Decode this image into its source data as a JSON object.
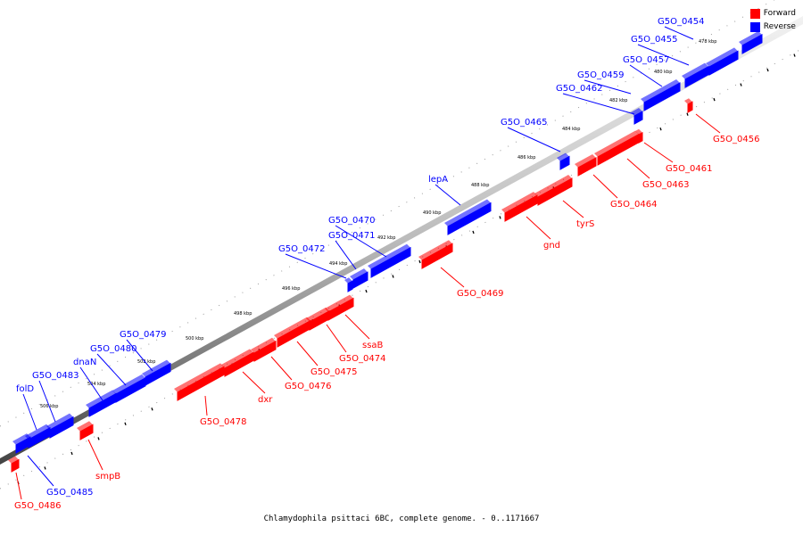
{
  "caption": "Chlamydophila psittaci 6BC, complete genome. - 0..1171667",
  "legend": {
    "forward_label": "Forward",
    "reverse_label": "Reverse",
    "forward_color": "#ff0000",
    "reverse_color": "#0000ff"
  },
  "tick_labels": [
    "478 kbp",
    "480 kbp",
    "482 kbp",
    "484 kbp",
    "486 kbp",
    "488 kbp",
    "490 kbp",
    "492 kbp",
    "494 kbp",
    "496 kbp",
    "498 kbp",
    "500 kbp",
    "502 kbp",
    "504 kbp",
    "506 kbp"
  ],
  "genes": [
    {
      "name": "G5O_0454",
      "strand": "reverse"
    },
    {
      "name": "G5O_0455",
      "strand": "reverse"
    },
    {
      "name": "G5O_0456",
      "strand": "forward"
    },
    {
      "name": "G5O_0457",
      "strand": "reverse"
    },
    {
      "name": "G5O_0459",
      "strand": "reverse"
    },
    {
      "name": "G5O_0462",
      "strand": "reverse"
    },
    {
      "name": "G5O_0461",
      "strand": "forward"
    },
    {
      "name": "G5O_0463",
      "strand": "forward"
    },
    {
      "name": "G5O_0465",
      "strand": "reverse"
    },
    {
      "name": "G5O_0464",
      "strand": "forward"
    },
    {
      "name": "lepA",
      "strand": "reverse"
    },
    {
      "name": "tyrS",
      "strand": "forward"
    },
    {
      "name": "gnd",
      "strand": "forward"
    },
    {
      "name": "G5O_0470",
      "strand": "reverse"
    },
    {
      "name": "G5O_0471",
      "strand": "reverse"
    },
    {
      "name": "G5O_0472",
      "strand": "reverse"
    },
    {
      "name": "G5O_0469",
      "strand": "forward"
    },
    {
      "name": "ssaB",
      "strand": "forward"
    },
    {
      "name": "G5O_0474",
      "strand": "forward"
    },
    {
      "name": "G5O_0475",
      "strand": "forward"
    },
    {
      "name": "G5O_0476",
      "strand": "forward"
    },
    {
      "name": "dxr",
      "strand": "forward"
    },
    {
      "name": "G5O_0478",
      "strand": "forward"
    },
    {
      "name": "G5O_0479",
      "strand": "reverse"
    },
    {
      "name": "G5O_0480",
      "strand": "reverse"
    },
    {
      "name": "dnaN",
      "strand": "reverse"
    },
    {
      "name": "G5O_0483",
      "strand": "reverse"
    },
    {
      "name": "folD",
      "strand": "reverse"
    },
    {
      "name": "smpB",
      "strand": "forward"
    },
    {
      "name": "G5O_0485",
      "strand": "reverse"
    },
    {
      "name": "G5O_0486",
      "strand": "forward"
    }
  ]
}
